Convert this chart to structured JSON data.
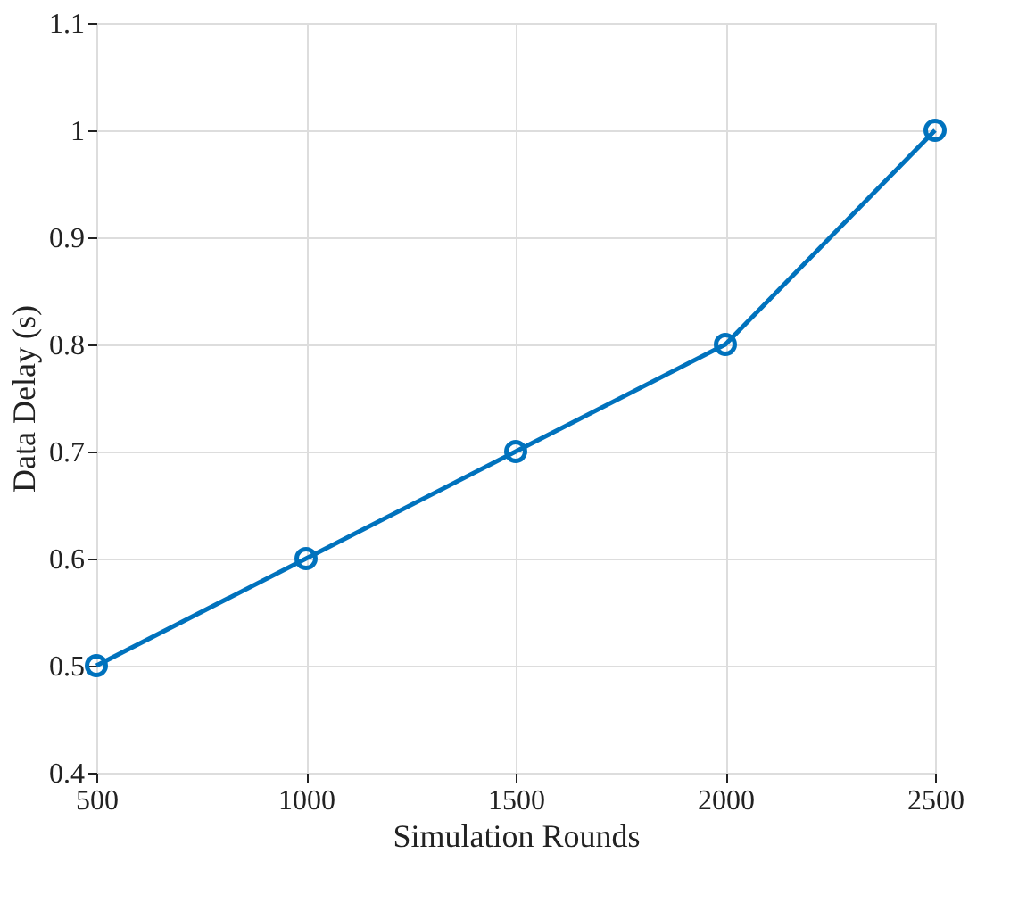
{
  "chart_data": {
    "type": "line",
    "xlabel": "Simulation Rounds",
    "ylabel": "Data Delay (s)",
    "x": [
      500,
      1000,
      1500,
      2000,
      2500
    ],
    "series": [
      {
        "color": "#0072bd",
        "values": [
          0.5,
          0.6,
          0.7,
          0.8,
          1.0
        ]
      }
    ],
    "xlim": [
      500,
      2500
    ],
    "xticks": [
      500,
      1000,
      1500,
      2000,
      2500
    ],
    "ylim": [
      0.4,
      1.1
    ],
    "yticks": [
      0.4,
      0.5,
      0.6,
      0.7,
      0.8,
      0.9,
      1,
      1.1
    ],
    "grid": true,
    "marker": "circle",
    "line_style": "solid"
  }
}
